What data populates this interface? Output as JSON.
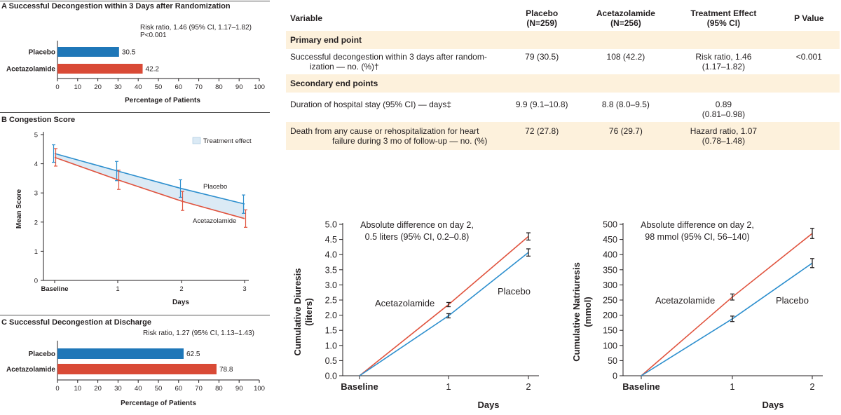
{
  "colors": {
    "placebo_bar": "#1f77b8",
    "acetazolamide_bar": "#d94a36",
    "placebo_line": "#2d8fce",
    "acetazolamide_line": "#e0533e",
    "band": "#dbeaf5",
    "table_shade": "#fdf1dc"
  },
  "panel_a": {
    "title": "A  Successful Decongestion within 3 Days after Randomization",
    "annotation_line1": "Risk ratio, 1.46 (95% CI, 1.17–1.82)",
    "annotation_line2": "P<0.001",
    "xlabel": "Percentage of Patients"
  },
  "panel_b": {
    "title": "B  Congestion Score",
    "ylabel": "Mean Score",
    "xlabel": "Days",
    "legend": "Treatment effect",
    "label_placebo": "Placebo",
    "label_acetazolamide": "Acetazolamide"
  },
  "panel_c": {
    "title": "C  Successful Decongestion at Discharge",
    "annotation": "Risk ratio, 1.27 (95% CI, 1.13–1.43)",
    "xlabel": "Percentage of Patients"
  },
  "diuresis": {
    "annotation_line1": "Absolute difference on day 2,",
    "annotation_line2": "0.5 liters (95% CI, 0.2–0.8)",
    "ylabel_line1": "Cumulative Diuresis",
    "ylabel_line2": "(liters)",
    "xlabel": "Days",
    "label_acetazolamide": "Acetazolamide",
    "label_placebo": "Placebo"
  },
  "natriuresis": {
    "annotation_line1": "Absolute difference on day 2,",
    "annotation_line2": "98 mmol (95% CI, 56–140)",
    "ylabel_line1": "Cumulative Natriuresis",
    "ylabel_line2": "(mmol)",
    "xlabel": "Days",
    "label_acetazolamide": "Acetazolamide",
    "label_placebo": "Placebo"
  },
  "table": {
    "headers": {
      "variable": "Variable",
      "placebo_line1": "Placebo",
      "placebo_line2": "(N=259)",
      "acet_line1": "Acetazolamide",
      "acet_line2": "(N=256)",
      "effect_line1": "Treatment Effect",
      "effect_line2": "(95% CI)",
      "pvalue": "P Value"
    },
    "primary_section": "Primary end point",
    "secondary_section": "Secondary end points",
    "row1": {
      "var_line1": "Successful decongestion within 3 days after random-",
      "var_line2": "ization — no. (%)†",
      "placebo": "79 (30.5)",
      "acet": "108 (42.2)",
      "effect_line1": "Risk ratio, 1.46",
      "effect_line2": "(1.17–1.82)",
      "p": "<0.001"
    },
    "row2": {
      "var_line1": "Duration of hospital stay (95% CI) — days‡",
      "placebo": "9.9 (9.1–10.8)",
      "acet": "8.8 (8.0–9.5)",
      "effect_line1": "0.89",
      "effect_line2": "(0.81–0.98)",
      "p": ""
    },
    "row3": {
      "var_line1": "Death from any cause or rehospitalization for heart",
      "var_line2": "failure during 3 mo of follow-up — no. (%)",
      "placebo": "72 (27.8)",
      "acet": "76 (29.7)",
      "effect_line1": "Hazard ratio, 1.07",
      "effect_line2": "(0.78–1.48)",
      "p": ""
    }
  },
  "chart_data": [
    {
      "type": "bar",
      "orientation": "horizontal",
      "categories": [
        "Placebo",
        "Acetazolamide"
      ],
      "values": [
        30.5,
        42.2
      ],
      "value_labels": [
        "30.5",
        "42.2"
      ],
      "xlim": [
        0,
        100
      ],
      "xticks": [
        "0",
        "10",
        "20",
        "30",
        "40",
        "50",
        "60",
        "70",
        "80",
        "90",
        "100"
      ]
    },
    {
      "type": "line",
      "x": [
        "Baseline",
        "1",
        "2",
        "3"
      ],
      "ylim": [
        0,
        5
      ],
      "yticks": [
        "0",
        "1",
        "2",
        "3",
        "4",
        "5"
      ],
      "series": [
        {
          "name": "Placebo",
          "values": [
            4.35,
            3.75,
            3.15,
            2.62
          ],
          "err_low": [
            4.05,
            3.42,
            2.85,
            2.3
          ],
          "err_high": [
            4.65,
            4.08,
            3.45,
            2.93
          ]
        },
        {
          "name": "Acetazolamide",
          "values": [
            4.22,
            3.45,
            2.72,
            2.12
          ],
          "err_low": [
            3.92,
            3.12,
            2.4,
            1.82
          ],
          "err_high": [
            4.52,
            3.78,
            3.05,
            2.42
          ]
        }
      ]
    },
    {
      "type": "bar",
      "orientation": "horizontal",
      "categories": [
        "Placebo",
        "Acetazolamide"
      ],
      "values": [
        62.5,
        78.8
      ],
      "value_labels": [
        "62.5",
        "78.8"
      ],
      "xlim": [
        0,
        100
      ],
      "xticks": [
        "0",
        "10",
        "20",
        "30",
        "40",
        "50",
        "60",
        "70",
        "80",
        "90",
        "100"
      ]
    },
    {
      "type": "line",
      "x": [
        "Baseline",
        "1",
        "2"
      ],
      "ylim": [
        0,
        5
      ],
      "yticks": [
        "0.0",
        "0.5",
        "1.0",
        "1.5",
        "2.0",
        "2.5",
        "3.0",
        "3.5",
        "4.0",
        "4.5",
        "5.0"
      ],
      "series": [
        {
          "name": "Acetazolamide",
          "values": [
            0,
            2.35,
            4.6
          ],
          "err": [
            0,
            0.07,
            0.12
          ]
        },
        {
          "name": "Placebo",
          "values": [
            0,
            1.98,
            4.07
          ],
          "err": [
            0,
            0.07,
            0.12
          ]
        }
      ]
    },
    {
      "type": "line",
      "x": [
        "Baseline",
        "1",
        "2"
      ],
      "ylim": [
        0,
        500
      ],
      "yticks": [
        "0",
        "50",
        "100",
        "150",
        "200",
        "250",
        "300",
        "350",
        "400",
        "450",
        "500"
      ],
      "series": [
        {
          "name": "Acetazolamide",
          "values": [
            0,
            260,
            470
          ],
          "err": [
            0,
            10,
            17
          ]
        },
        {
          "name": "Placebo",
          "values": [
            0,
            188,
            372
          ],
          "err": [
            0,
            9,
            15
          ]
        }
      ]
    }
  ]
}
